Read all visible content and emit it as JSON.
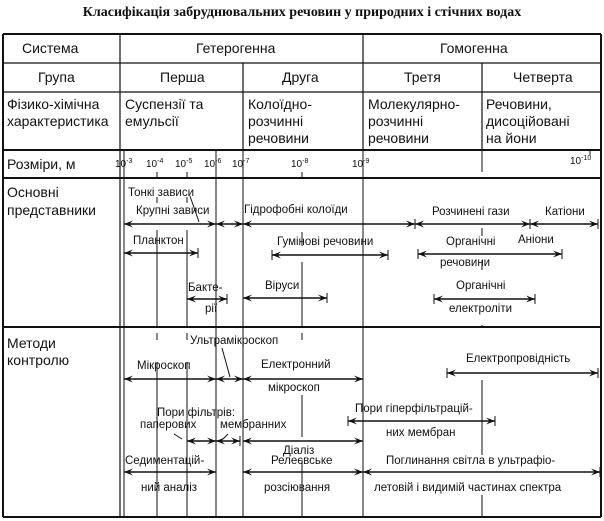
{
  "title": "Класифікація забруднювальних речовин у природних і стічних водах",
  "header": {
    "system_label": "Система",
    "heterogeneous": "Гетерогенна",
    "homogeneous": "Гомогенна",
    "group_label": "Група",
    "group1": "Перша",
    "group2": "Друга",
    "group3": "Третя",
    "group4": "Четверта",
    "physchem_label": [
      "Фізико-хімічна",
      "характеристика"
    ],
    "char1": [
      "Суспензії та",
      "емульсії"
    ],
    "char2": [
      "Колоїдно-",
      "розчинні",
      "речовини"
    ],
    "char3": [
      "Молекулярно-",
      "розчинні",
      "речовини"
    ],
    "char4": [
      "Речовини,",
      "дисоційовані",
      "на йони"
    ]
  },
  "sizes": {
    "label": "Розміри, м",
    "ticks": [
      "-3",
      "-4",
      "-5",
      "-6",
      "-7",
      "-8",
      "-9",
      "-10"
    ]
  },
  "representatives": {
    "label": [
      "Основні",
      "представники"
    ],
    "items": {
      "fine_suspensions": "Тонкі зависи",
      "coarse_suspensions": "Крупні зависи",
      "hydrophobic_colloids": "Гідрофобні колоїди",
      "dissolved_gases": "Розчинені гази",
      "cations": "Катіони",
      "plankton": "Планктон",
      "humic": "Гумінові речовини",
      "organic_substances": [
        "Органічні",
        "речовини"
      ],
      "anions": "Аніони",
      "bacteria": [
        "Бакте-",
        "рії"
      ],
      "viruses": "Віруси",
      "organic_electrolytes": [
        "Органічні",
        "електроліти"
      ]
    }
  },
  "methods": {
    "label": [
      "Методи",
      "контролю"
    ],
    "items": {
      "ultramicroscope": "Ультрамікроскоп",
      "microscope": "Мікроскоп",
      "electron_microscope": [
        "Електронний",
        "мікроскоп"
      ],
      "conductivity": "Електропровідність",
      "filter_pores": "Пори фільтрів:",
      "paper": "паперових",
      "membrane": "мембранних",
      "dialysis": "Діаліз",
      "hyperfiltration": [
        "Пори гіперфільтрацій-",
        "них мембран"
      ],
      "sedimentation": [
        "Седиментацій-",
        "ний аналіз"
      ],
      "rayleigh": [
        "Релеєвське",
        "розсіювання"
      ],
      "absorption": [
        "Поглинання світла в ультрафіо-",
        "летовій і видимій частинах спектра"
      ]
    }
  }
}
